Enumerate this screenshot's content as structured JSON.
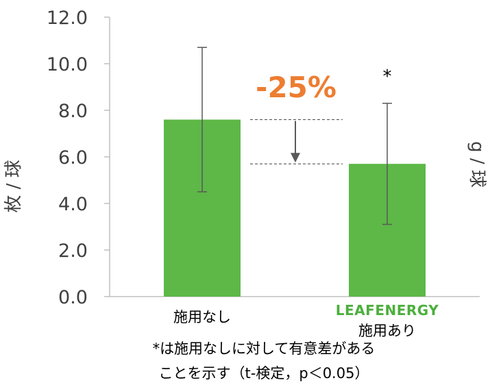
{
  "chart_data": {
    "type": "bar",
    "categories": [
      "施用なし",
      "施用あり"
    ],
    "values": [
      7.6,
      5.7
    ],
    "error_high": [
      10.7,
      8.3
    ],
    "error_low": [
      4.5,
      3.1
    ],
    "ylim": [
      0,
      12
    ],
    "yticks": [
      "0.0",
      "2.0",
      "4.0",
      "6.0",
      "8.0",
      "10.0",
      "12.0"
    ],
    "ylabel": "枚 / 球",
    "ylabel_right": "g / 球",
    "bar_color": "#5db847",
    "annotation_color": "#ed7d31",
    "reduction_label": "-25%",
    "significance_marker": "*",
    "brand_label": "LEAFENERGY",
    "footnote_lines": [
      "*は施用なしに対して有意差がある",
      "ことを示す（t-検定，p＜0.05）"
    ]
  }
}
